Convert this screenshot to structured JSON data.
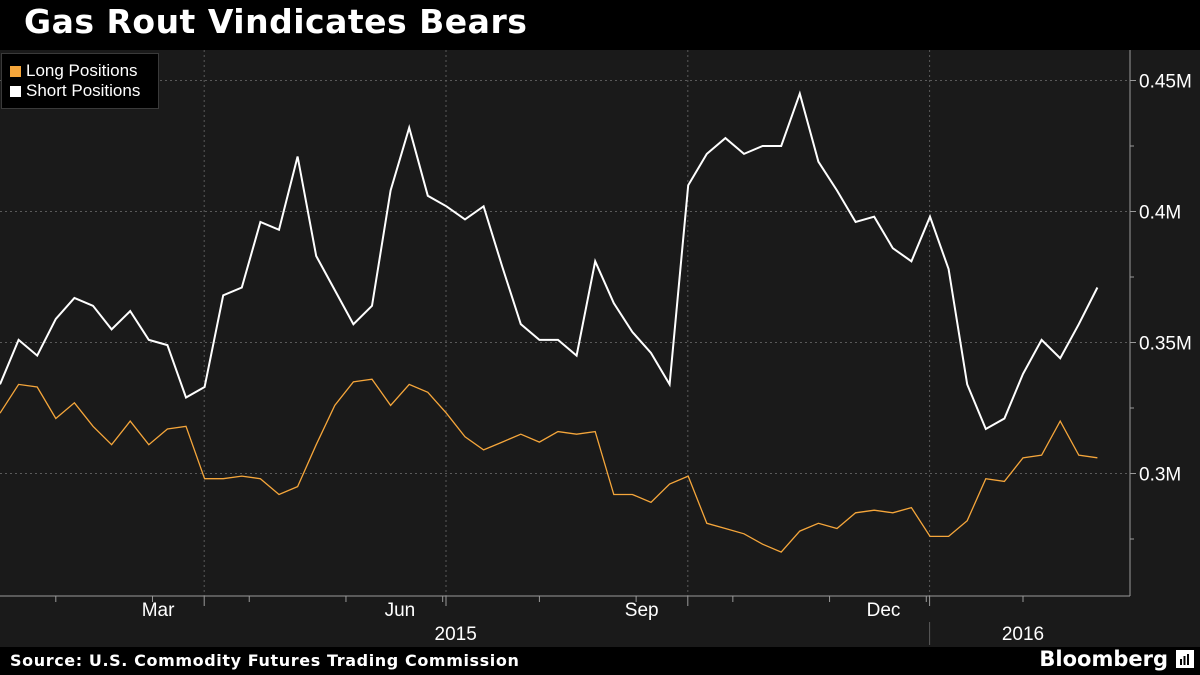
{
  "title": "Gas Rout Vindicates Bears",
  "source": "Source: U.S. Commodity Futures Trading Commission",
  "brand": "Bloomberg",
  "brand_icon": "bloomberg-terminal-icon",
  "colors": {
    "background": "#000000",
    "plot_background": "#1a1a1a",
    "long": "#f5a63b",
    "short": "#ffffff",
    "grid": "#5a5a5a",
    "axis": "#9a9a9a"
  },
  "chart_data": {
    "type": "line",
    "title": "Gas Rout Vindicates Bears",
    "xlabel": "",
    "ylabel": "",
    "ylim": [
      0.255,
      0.465
    ],
    "yticks": [
      {
        "value": 0.45,
        "label": "0.45M"
      },
      {
        "value": 0.4,
        "label": "0.4M"
      },
      {
        "value": 0.35,
        "label": "0.35M"
      },
      {
        "value": 0.3,
        "label": "0.3M"
      }
    ],
    "x_month_labels": [
      {
        "index": 8.5,
        "label": "Mar"
      },
      {
        "index": 21.5,
        "label": "Jun"
      },
      {
        "index": 34.5,
        "label": "Sep"
      },
      {
        "index": 47.5,
        "label": "Dec"
      }
    ],
    "x_year_labels": [
      {
        "index": 24.5,
        "label": "2015"
      },
      {
        "index": 55.0,
        "label": "2016"
      }
    ],
    "grid": true,
    "legend_position": "top-left",
    "series": [
      {
        "name": "Long Positions",
        "color": "#f5a63b",
        "values": [
          0.323,
          0.334,
          0.333,
          0.321,
          0.327,
          0.318,
          0.311,
          0.32,
          0.311,
          0.317,
          0.318,
          0.298,
          0.298,
          0.299,
          0.298,
          0.292,
          0.295,
          0.311,
          0.326,
          0.335,
          0.336,
          0.326,
          0.334,
          0.331,
          0.323,
          0.314,
          0.309,
          0.312,
          0.315,
          0.312,
          0.316,
          0.315,
          0.316,
          0.292,
          0.292,
          0.289,
          0.296,
          0.299,
          0.281,
          0.279,
          0.277,
          0.273,
          0.27,
          0.278,
          0.281,
          0.279,
          0.285,
          0.286,
          0.285,
          0.287,
          0.276,
          0.276,
          0.282,
          0.298,
          0.297,
          0.306,
          0.307,
          0.32,
          0.307,
          0.306
        ]
      },
      {
        "name": "Short Positions",
        "color": "#ffffff",
        "values": [
          0.334,
          0.351,
          0.345,
          0.359,
          0.367,
          0.364,
          0.355,
          0.362,
          0.351,
          0.349,
          0.329,
          0.333,
          0.368,
          0.371,
          0.396,
          0.393,
          0.421,
          0.383,
          0.37,
          0.357,
          0.364,
          0.408,
          0.432,
          0.406,
          0.402,
          0.397,
          0.402,
          0.379,
          0.357,
          0.351,
          0.351,
          0.345,
          0.381,
          0.365,
          0.354,
          0.346,
          0.334,
          0.41,
          0.422,
          0.428,
          0.422,
          0.425,
          0.425,
          0.445,
          0.419,
          0.408,
          0.396,
          0.398,
          0.386,
          0.381,
          0.398,
          0.378,
          0.334,
          0.317,
          0.321,
          0.338,
          0.351,
          0.344,
          0.357,
          0.371
        ]
      }
    ]
  }
}
